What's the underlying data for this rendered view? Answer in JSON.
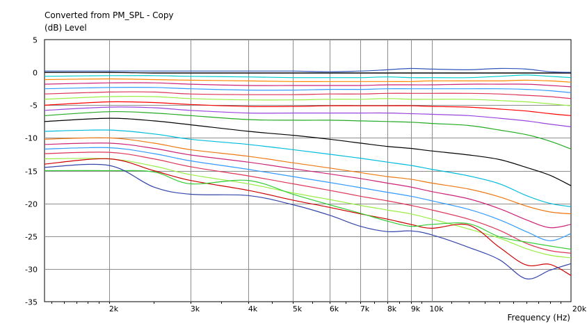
{
  "chart_data": {
    "type": "line",
    "title": "Converted from PM_SPL - Copy",
    "ylabel": "(dB)  Level",
    "xlabel": "Frequency  (Hz)",
    "x_scale": "log",
    "xlim": [
      1450,
      20000
    ],
    "ylim": [
      -35,
      5
    ],
    "grid": true,
    "x_ticks": [
      {
        "value": 2000,
        "label": "2k"
      },
      {
        "value": 3000,
        "label": "3k"
      },
      {
        "value": 4000,
        "label": "4k"
      },
      {
        "value": 5000,
        "label": "5k"
      },
      {
        "value": 6000,
        "label": "6k"
      },
      {
        "value": 7000,
        "label": "7k"
      },
      {
        "value": 8000,
        "label": "8k"
      },
      {
        "value": 9000,
        "label": "9k"
      },
      {
        "value": 10000,
        "label": "10k"
      },
      {
        "value": 20000,
        "label": "20k"
      }
    ],
    "y_ticks": [
      5,
      0,
      -5,
      -10,
      -15,
      -20,
      -25,
      -30,
      -35
    ],
    "x": [
      1450,
      2000,
      2500,
      3000,
      4000,
      5000,
      6000,
      7000,
      8000,
      9000,
      10000,
      12000,
      14000,
      16000,
      18000,
      20000
    ],
    "series": [
      {
        "color": "#3355bb",
        "values": [
          0.2,
          0.2,
          0.2,
          0.2,
          0.2,
          0.2,
          0.1,
          0.2,
          0.4,
          0.6,
          0.5,
          0.4,
          0.6,
          0.5,
          0.1,
          0.0
        ]
      },
      {
        "color": "#000000",
        "values": [
          0.0,
          0.0,
          -0.1,
          -0.1,
          -0.1,
          -0.1,
          -0.1,
          -0.1,
          -0.1,
          -0.1,
          -0.1,
          -0.1,
          -0.1,
          -0.1,
          -0.1,
          -0.1
        ]
      },
      {
        "color": "#00cccc",
        "values": [
          -0.6,
          -0.5,
          -0.5,
          -0.6,
          -0.7,
          -0.8,
          -0.8,
          -0.8,
          -0.7,
          -0.8,
          -0.8,
          -0.8,
          -0.6,
          -0.4,
          -0.6,
          -0.8
        ]
      },
      {
        "color": "#ff8800",
        "values": [
          -1.1,
          -1.0,
          -1.1,
          -1.2,
          -1.3,
          -1.4,
          -1.4,
          -1.4,
          -1.4,
          -1.4,
          -1.3,
          -1.3,
          -1.3,
          -1.2,
          -1.3,
          -1.5
        ]
      },
      {
        "color": "#cc2277",
        "values": [
          -1.8,
          -1.6,
          -1.6,
          -1.8,
          -2.0,
          -2.0,
          -2.0,
          -2.0,
          -1.9,
          -1.9,
          -1.9,
          -1.8,
          -1.8,
          -1.8,
          -2.0,
          -2.2
        ]
      },
      {
        "color": "#3399ff",
        "values": [
          -2.5,
          -2.3,
          -2.3,
          -2.5,
          -2.7,
          -2.7,
          -2.6,
          -2.6,
          -2.5,
          -2.5,
          -2.5,
          -2.5,
          -2.5,
          -2.6,
          -2.8,
          -3.1
        ]
      },
      {
        "color": "#dd3355",
        "values": [
          -3.3,
          -3.0,
          -3.0,
          -3.3,
          -3.4,
          -3.4,
          -3.3,
          -3.3,
          -3.2,
          -3.2,
          -3.2,
          -3.2,
          -3.3,
          -3.5,
          -3.7,
          -4.0
        ]
      },
      {
        "color": "#99ee44",
        "values": [
          -4.1,
          -3.7,
          -3.7,
          -4.0,
          -4.2,
          -4.2,
          -4.1,
          -4.1,
          -4.0,
          -4.1,
          -4.1,
          -4.1,
          -4.3,
          -4.5,
          -4.8,
          -5.1
        ]
      },
      {
        "color": "#ff0000",
        "values": [
          -5.0,
          -4.5,
          -4.6,
          -4.9,
          -5.2,
          -5.2,
          -5.1,
          -5.1,
          -5.1,
          -5.1,
          -5.2,
          -5.3,
          -5.6,
          -5.9,
          -6.3,
          -6.6
        ]
      },
      {
        "color": "#9944dd",
        "values": [
          -5.8,
          -5.3,
          -5.4,
          -5.8,
          -6.2,
          -6.2,
          -6.2,
          -6.2,
          -6.2,
          -6.3,
          -6.4,
          -6.6,
          -7.0,
          -7.4,
          -7.9,
          -8.3
        ]
      },
      {
        "color": "#22aa22",
        "values": [
          -6.6,
          -6.0,
          -6.2,
          -6.6,
          -7.2,
          -7.3,
          -7.3,
          -7.4,
          -7.5,
          -7.6,
          -7.8,
          -8.1,
          -8.8,
          -9.5,
          -10.5,
          -11.7
        ]
      },
      {
        "color": "#000000",
        "values": [
          -7.5,
          -7.0,
          -7.4,
          -8.0,
          -9.0,
          -9.6,
          -10.2,
          -10.8,
          -11.3,
          -11.6,
          -12.0,
          -12.6,
          -13.3,
          -14.5,
          -15.7,
          -17.3
        ]
      },
      {
        "color": "#00bbdd",
        "values": [
          -9.0,
          -8.8,
          -9.4,
          -10.2,
          -11.0,
          -11.8,
          -12.5,
          -13.1,
          -13.7,
          -14.2,
          -14.8,
          -15.8,
          -17.0,
          -18.8,
          -20.0,
          -20.5
        ]
      },
      {
        "color": "#ee7711",
        "values": [
          -10.2,
          -10.0,
          -10.8,
          -11.8,
          -12.8,
          -13.8,
          -14.6,
          -15.3,
          -15.9,
          -16.3,
          -16.9,
          -17.8,
          -19.0,
          -20.4,
          -21.3,
          -21.6
        ]
      },
      {
        "color": "#cc2277",
        "values": [
          -11.0,
          -10.8,
          -11.6,
          -12.6,
          -13.7,
          -14.7,
          -15.5,
          -16.2,
          -16.9,
          -17.5,
          -18.2,
          -19.3,
          -20.8,
          -22.5,
          -23.7,
          -23.2
        ]
      },
      {
        "color": "#3399ff",
        "values": [
          -11.7,
          -11.5,
          -12.4,
          -13.5,
          -14.8,
          -15.9,
          -16.8,
          -17.6,
          -18.3,
          -18.9,
          -19.6,
          -20.9,
          -22.5,
          -24.3,
          -25.7,
          -24.6
        ]
      },
      {
        "color": "#dd3355",
        "values": [
          -12.4,
          -12.2,
          -13.2,
          -14.4,
          -15.8,
          -17.0,
          -18.0,
          -18.9,
          -19.6,
          -20.3,
          -21.0,
          -22.4,
          -24.1,
          -26.1,
          -27.2,
          -27.6
        ]
      },
      {
        "color": "#99ee44",
        "values": [
          -13.2,
          -13.2,
          -14.3,
          -15.6,
          -17.0,
          -18.4,
          -19.4,
          -20.3,
          -21.0,
          -21.6,
          -22.4,
          -23.9,
          -25.3,
          -26.9,
          -27.9,
          -28.3
        ]
      },
      {
        "color": "#cc0000",
        "values": [
          -14.0,
          -13.2,
          -15.0,
          -16.5,
          -18.0,
          -19.5,
          -20.6,
          -21.6,
          -22.4,
          -23.2,
          -23.8,
          -23.3,
          -26.7,
          -29.4,
          -29.3,
          -31.0
        ]
      },
      {
        "color": "#33cc33",
        "values": [
          -15.0,
          -15.0,
          -15.2,
          -17.0,
          -16.5,
          -18.6,
          -20.2,
          -21.5,
          -22.7,
          -23.5,
          -23.2,
          -23.1,
          -25.1,
          -25.9,
          -26.5,
          -27.0
        ]
      },
      {
        "color": "#3344aa",
        "values": [
          -14.5,
          -14.2,
          -17.5,
          -18.6,
          -18.8,
          -20.2,
          -21.8,
          -23.5,
          -24.3,
          -24.2,
          -24.8,
          -26.7,
          -28.6,
          -31.5,
          -30.2,
          -29.2
        ]
      }
    ]
  }
}
